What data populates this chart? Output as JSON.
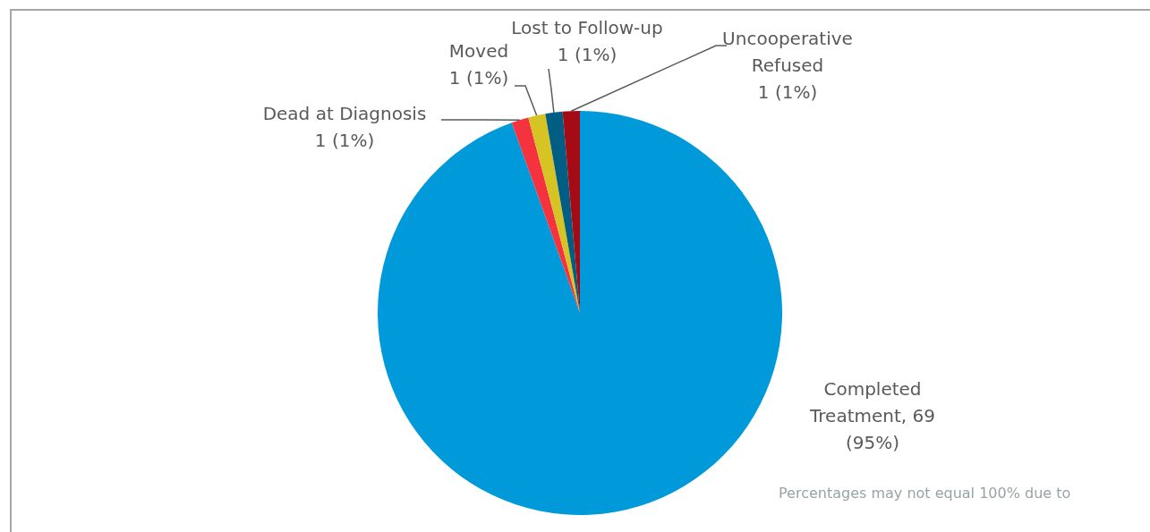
{
  "chart_data": {
    "type": "pie",
    "categories": [
      "Completed Treatment",
      "Dead at Diagnosis",
      "Moved",
      "Lost to Follow-up",
      "Uncooperative Refused"
    ],
    "values": [
      69,
      1,
      1,
      1,
      1
    ],
    "colors": [
      "#009ada",
      "#f5333f",
      "#d5c424",
      "#005e85",
      "#a50b15"
    ],
    "value_labels": [
      "69 (95%)",
      "1 (1%)",
      "1 (1%)",
      "1 (1%)",
      "1 (1%)"
    ],
    "annotations": [
      "Percentages may not equal 100% due to"
    ]
  }
}
